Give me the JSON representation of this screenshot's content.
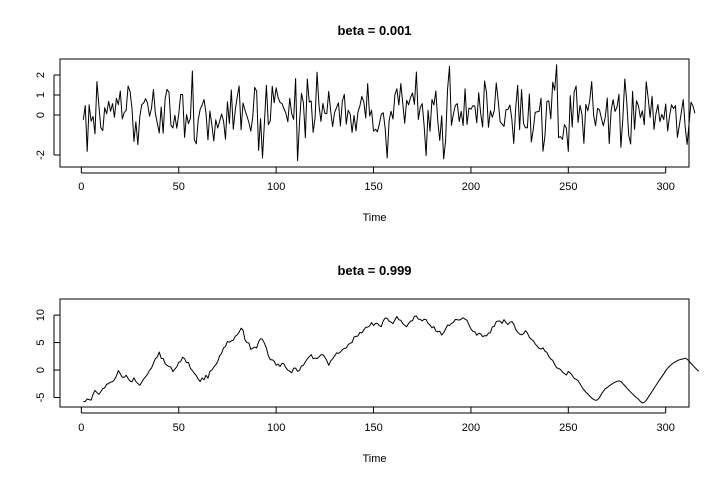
{
  "chart_data": [
    {
      "type": "line",
      "title": "beta = 0.001",
      "xlabel": "Time",
      "ylabel": "",
      "xlim": [
        1,
        300
      ],
      "ylim": [
        -2.4,
        2.6
      ],
      "x_ticks": [
        0,
        50,
        100,
        150,
        200,
        250,
        300
      ],
      "y_ticks": [
        -2,
        0,
        1,
        2
      ],
      "grid": false,
      "legend": "none",
      "line_color": "#000000",
      "series": [
        {
          "x_start": 1,
          "x_step": 1,
          "values": [
            -0.24,
            0.47,
            -1.82,
            0.51,
            -0.31,
            -0.07,
            -0.94,
            1.67,
            0.47,
            -0.64,
            -0.78,
            0.37,
            0.06,
            0.68,
            0.19,
            0.57,
            -0.11,
            0.83,
            0.52,
            1.2,
            -0.2,
            0.12,
            0.23,
            1.45,
            1.18,
            0.32,
            -1.32,
            -0.34,
            -1.48,
            -0.1,
            0.52,
            0.6,
            0.82,
            0.58,
            -0.06,
            0.33,
            1.28,
            0.08,
            -0.41,
            -0.9,
            0.4,
            -0.91,
            0.8,
            1.28,
            1.13,
            -0.51,
            -0.65,
            -0.01,
            -0.66,
            0.04,
            1.03,
            1.02,
            -1.12,
            0.02,
            -0.43,
            -0.16,
            2.2,
            -1.24,
            -1.44,
            -0.23,
            0.28,
            0.5,
            0.77,
            0.08,
            -1.24,
            0.2,
            -0.5,
            -1.3,
            -0.24,
            -0.65,
            -0.32,
            0.05,
            -0.3,
            -1.21,
            0.66,
            -0.42,
            1.25,
            -0.71,
            0.23,
            0.89,
            1.45,
            -0.74,
            0.6,
            0.24,
            -0.05,
            -0.37,
            -0.81,
            -0.1,
            1.38,
            1.19,
            -1.77,
            -0.18,
            -2.15,
            -0.35,
            1.49,
            -0.49,
            -0.29,
            1.44,
            0.61,
            1.36,
            0.88,
            0.63,
            0.57,
            0.32,
            0.09,
            -0.34,
            0.84,
            0.06,
            -0.22,
            1.82,
            -2.28,
            -0.37,
            1.08,
            0.61,
            -1.13,
            1.8,
            0.65,
            0.7,
            -0.87,
            -0.14,
            2.14,
            0.49,
            -0.32,
            0.58,
            0.09,
            0.06,
            1.18,
            0.2,
            -0.58,
            0.12,
            0.37,
            0.61,
            -0.55,
            0.7,
            1.03,
            -0.46,
            0.24,
            0.04,
            -0.87,
            -0.02,
            -0.79,
            0.14,
            0.45,
            0.93,
            0.66,
            -0.15,
            1.57,
            -0.05,
            0.24,
            -0.81,
            -0.71,
            -0.84,
            -0.45,
            0.04,
            0.11,
            -0.69,
            -2.15,
            -0.29,
            0.19,
            -0.2,
            1.03,
            1.31,
            0.5,
            1.57,
            0.6,
            -0.41,
            0.74,
            0.51,
            0.87,
            1.1,
            0.54,
            2.15,
            -0.22,
            0.38,
            0.57,
            -0.56,
            -2.03,
            0.24,
            -0.81,
            0.77,
            0.5,
            1.2,
            -0.33,
            -1.27,
            -0.04,
            -2.19,
            -1.28,
            1.27,
            2.43,
            -0.52,
            0.04,
            0.48,
            0.57,
            -0.32,
            0.18,
            -0.52,
            1.31,
            -0.47,
            0.35,
            0.29,
            0.46,
            0.45,
            -0.39,
            1.11,
            0.09,
            -0.6,
            1.7,
            1.13,
            -0.61,
            0.21,
            -0.12,
            0.23,
            1.6,
            0.72,
            -0.34,
            -0.45,
            -0.57,
            0.26,
            0.28,
            0.5,
            -0.2,
            -1.42,
            0.37,
            1.49,
            -0.73,
            1.27,
            -0.42,
            -0.64,
            -0.64,
            1.05,
            -1.35,
            -0.73,
            0.13,
            0.16,
            0.18,
            0.84,
            -1.81,
            -1.04,
            0.67,
            0.71,
            -0.19,
            1.64,
            1.23,
            2.52,
            -1.13,
            -1.08,
            -1.22,
            -0.48,
            -0.65,
            -1.82,
            0.97,
            -0.6,
            1.15,
            1.45,
            -0.37,
            0.48,
            0.04,
            -1.42,
            0.53,
            0.21,
            0.72,
            1.67,
            -0.02,
            -0.54,
            0.33,
            0.26,
            -0.17,
            -0.54,
            -0.09,
            0.85,
            -1.43,
            0.24,
            0.77,
            0.18,
            0.4,
            1.04,
            -1.62,
            -0.16,
            1.8,
            0.67,
            -1.01,
            -1.45,
            1.18,
            -0.72,
            0.71,
            0.46,
            -0.13,
            0.21,
            -0.49,
            1.66,
            0.84,
            -0.12,
            0.94,
            -0.72,
            0.07,
            0.52,
            -0.33,
            0.03,
            -0.23,
            0.55,
            -0.8,
            -0.04,
            0.51,
            0.32,
            0.47,
            -1.12,
            -0.52,
            0.13,
            0.77,
            -0.6,
            -1.47,
            -0.42,
            0.64,
            0.45,
            0.09
          ]
        }
      ]
    },
    {
      "type": "line",
      "title": "beta = 0.999",
      "xlabel": "Time",
      "ylabel": "",
      "xlim": [
        1,
        300
      ],
      "ylim": [
        -6,
        12.2
      ],
      "x_ticks": [
        0,
        50,
        100,
        150,
        200,
        250,
        300
      ],
      "y_ticks": [
        -5,
        0,
        5,
        10
      ],
      "grid": false,
      "legend": "none",
      "line_color": "#000000",
      "series": [
        {
          "x_start": 1,
          "x_step": 1,
          "values": [
            -5.74,
            -5.75,
            -5.26,
            -5.39,
            -5.48,
            -4.41,
            -3.71,
            -4.1,
            -4.42,
            -3.95,
            -3.39,
            -3.25,
            -2.59,
            -2.48,
            -2.19,
            -2.14,
            -1.73,
            -1.08,
            -0.09,
            -0.68,
            -1.32,
            -1.32,
            -0.95,
            -1.53,
            -2.0,
            -2.15,
            -1.42,
            -2.1,
            -2.46,
            -2.78,
            -2.23,
            -1.64,
            -1.2,
            -0.76,
            -0.05,
            0.35,
            1.21,
            2.07,
            2.39,
            3.27,
            2.12,
            2.1,
            1.17,
            0.83,
            0.65,
            0.53,
            -0.29,
            0.17,
            0.58,
            1.41,
            1.55,
            2.34,
            2.06,
            1.34,
            1.39,
            0.3,
            -0.09,
            -0.61,
            -1.01,
            -1.66,
            -2.11,
            -1.44,
            -1.78,
            -0.95,
            -1.5,
            -0.22,
            -0.01,
            0.54,
            0.95,
            1.53,
            2.58,
            3.02,
            4.03,
            4.28,
            5.23,
            5.07,
            5.3,
            5.42,
            6.16,
            6.4,
            6.89,
            7.62,
            7.26,
            5.5,
            4.98,
            4.94,
            3.75,
            3.98,
            4.16,
            4.02,
            5.14,
            5.71,
            5.57,
            4.86,
            4.02,
            2.6,
            1.87,
            1.87,
            1.6,
            0.88,
            1.06,
            0.63,
            1.22,
            1.12,
            0.42,
            -0.02,
            -0.21,
            -0.48,
            0.34,
            0.34,
            -0.24,
            -0.06,
            0.76,
            0.86,
            1.51,
            2.02,
            2.41,
            2.82,
            2.06,
            2.18,
            2.07,
            2.39,
            2.77,
            2.79,
            2.33,
            1.73,
            0.86,
            1.65,
            2.05,
            2.54,
            3.13,
            3.03,
            3.27,
            3.71,
            3.94,
            4.02,
            4.63,
            4.85,
            5.04,
            6.01,
            6.13,
            6.19,
            6.86,
            6.75,
            7.3,
            7.77,
            7.81,
            8.04,
            8.65,
            8.1,
            8.49,
            8.5,
            8.07,
            7.91,
            8.97,
            9.48,
            9.41,
            8.88,
            8.73,
            8.43,
            9.14,
            9.73,
            9.15,
            9.05,
            8.46,
            8.14,
            7.89,
            8.48,
            8.9,
            8.96,
            9.8,
            9.84,
            9.26,
            9.22,
            8.94,
            9.25,
            9.18,
            8.48,
            8.21,
            7.67,
            7.91,
            7.09,
            6.95,
            7.07,
            6.36,
            6.79,
            7.47,
            8.19,
            8.11,
            8.49,
            8.68,
            9.21,
            9.16,
            9.09,
            9.24,
            9.52,
            9.25,
            9.05,
            8.23,
            7.48,
            7.05,
            6.97,
            6.33,
            6.68,
            6.6,
            6.07,
            6.26,
            6.21,
            6.7,
            6.78,
            7.86,
            7.95,
            8.79,
            8.93,
            8.91,
            8.49,
            9.18,
            8.64,
            8.27,
            8.68,
            8.84,
            8.35,
            7.41,
            6.89,
            6.56,
            6.41,
            6.61,
            7.15,
            6.73,
            5.95,
            5.6,
            5.35,
            4.75,
            4.36,
            3.93,
            3.82,
            4.05,
            3.45,
            3.2,
            2.46,
            2.02,
            1.76,
            1.01,
            0.41,
            0.28,
            0.08,
            -0.37,
            -0.65,
            -0.91,
            -0.26,
            -0.53,
            -0.95,
            -1.51,
            -1.68,
            -1.94,
            -2.49,
            -3.09,
            -3.6,
            -4.02,
            -4.36,
            -4.75,
            -5.09,
            -5.35,
            -5.52,
            -5.42,
            -5.02,
            -4.38,
            -3.88,
            -3.4,
            -3.19,
            -2.88,
            -2.64,
            -2.4,
            -2.22,
            -2.07,
            -1.96,
            -2.09,
            -2.46,
            -2.86,
            -3.26,
            -3.64,
            -4.01,
            -4.37,
            -4.71,
            -5.02,
            -5.29,
            -5.72,
            -5.99,
            -5.87,
            -5.51,
            -4.99,
            -4.44,
            -3.89,
            -3.34,
            -2.79,
            -2.24,
            -1.73,
            -1.21,
            -0.69,
            -0.12,
            0.33,
            0.71,
            1.03,
            1.3,
            1.52,
            1.71,
            1.86,
            1.96,
            2.02,
            2.14,
            1.98,
            1.61,
            1.21,
            0.82,
            0.44,
            0.1,
            -0.23
          ]
        }
      ]
    }
  ]
}
